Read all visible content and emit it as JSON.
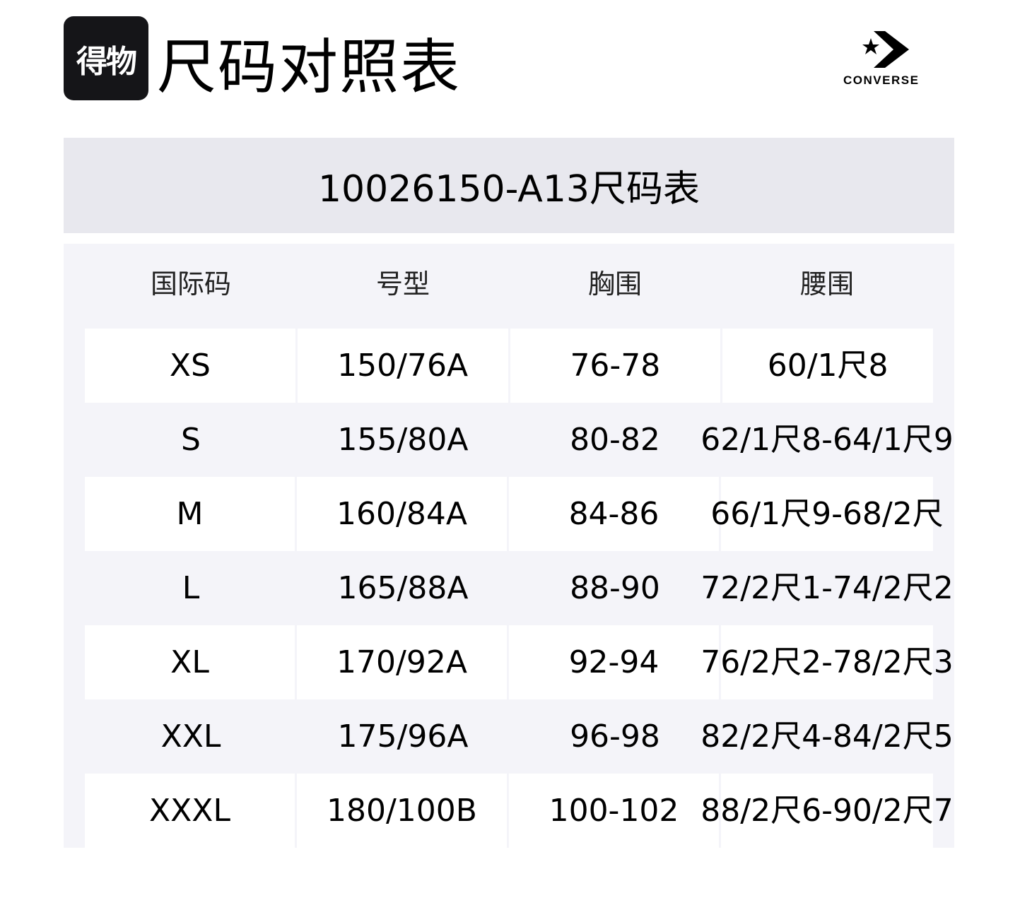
{
  "header": {
    "logo_text": "得物",
    "title": "尺码对照表",
    "brand": "CONVERSE"
  },
  "table": {
    "title": "10026150-A13尺码表",
    "columns": [
      "国际码",
      "号型",
      "胸围",
      "腰围"
    ],
    "rows": [
      [
        "XS",
        "150/76A",
        "76-78",
        "60/1尺8"
      ],
      [
        "S",
        "155/80A",
        "80-82",
        "62/1尺8-64/1尺9"
      ],
      [
        "M",
        "160/84A",
        "84-86",
        "66/1尺9-68/2尺"
      ],
      [
        "L",
        "165/88A",
        "88-90",
        "72/2尺1-74/2尺2"
      ],
      [
        "XL",
        "170/92A",
        "92-94",
        "76/2尺2-78/2尺3"
      ],
      [
        "XXL",
        "175/96A",
        "96-98",
        "82/2尺4-84/2尺5"
      ],
      [
        "XXXL",
        "180/100B",
        "100-102",
        "88/2尺6-90/2尺7"
      ]
    ]
  }
}
